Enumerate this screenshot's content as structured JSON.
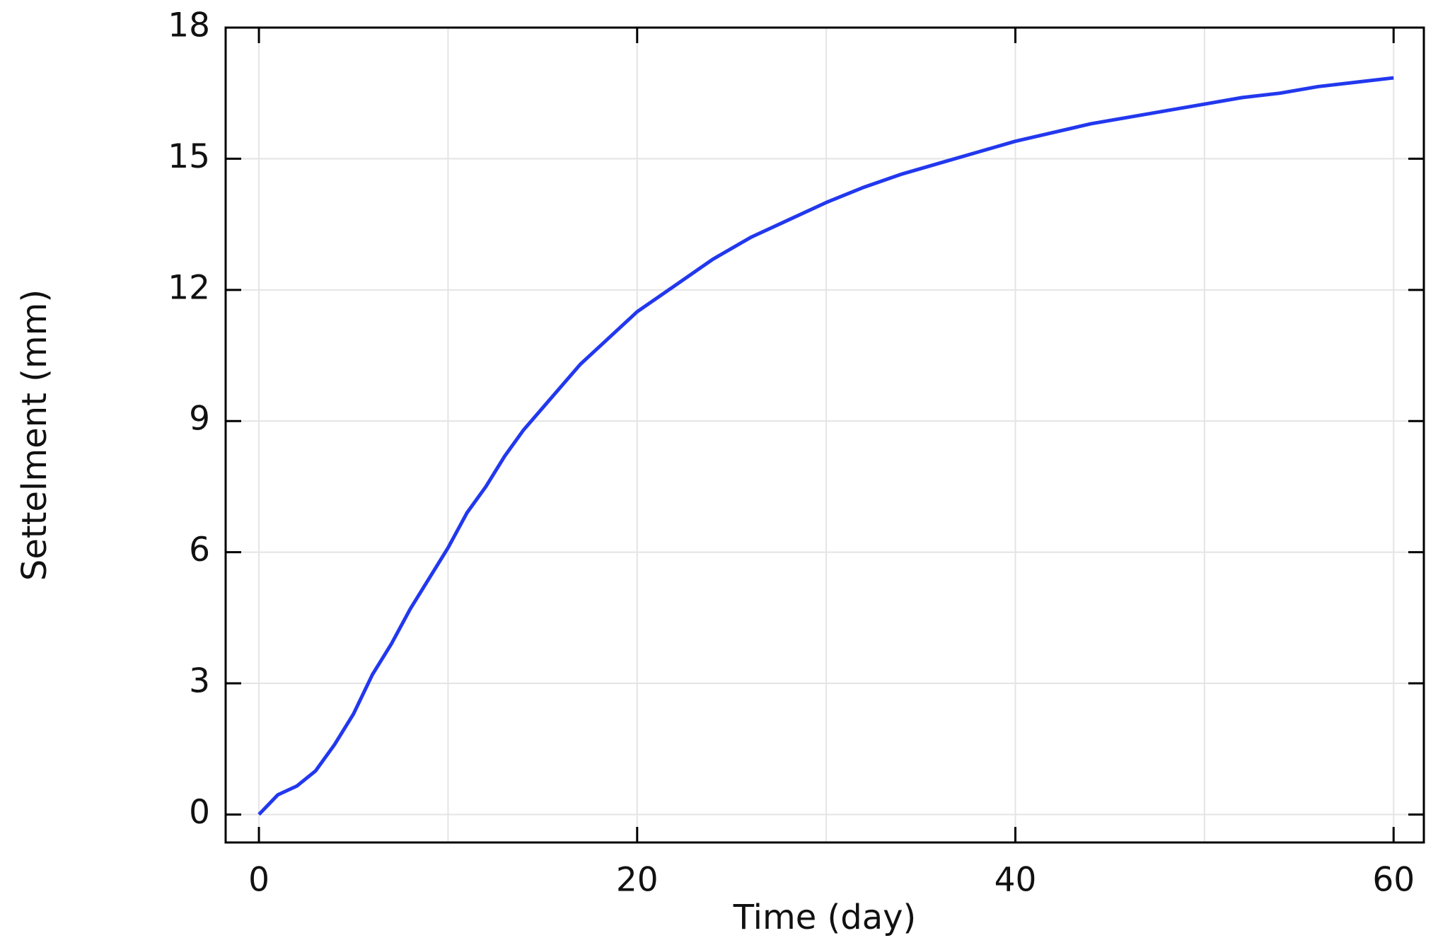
{
  "chart_data": {
    "type": "line",
    "x_label": "Time (day)",
    "y_label": "Settelment (mm)",
    "xlim": [
      -1.76,
      61.6
    ],
    "ylim": [
      -0.64,
      18
    ],
    "xticks": [
      0,
      20,
      40,
      60
    ],
    "xminorticks": [
      10,
      30,
      50
    ],
    "yticks": [
      0,
      3,
      6,
      9,
      12,
      15,
      18
    ],
    "grid": true,
    "series": [
      {
        "color": "#2238ee",
        "x": [
          0,
          1,
          2,
          3,
          4,
          5,
          6,
          7,
          8,
          9,
          10,
          11,
          12,
          13,
          14,
          15,
          16,
          17,
          18,
          19,
          20,
          22,
          24,
          26,
          28,
          30,
          32,
          34,
          36,
          38,
          40,
          42,
          44,
          46,
          48,
          50,
          52,
          54,
          56,
          58,
          60
        ],
        "values": [
          0,
          0.45,
          0.65,
          1.0,
          1.6,
          2.3,
          3.2,
          3.9,
          4.7,
          5.4,
          6.1,
          6.9,
          7.5,
          8.2,
          8.8,
          9.3,
          9.8,
          10.3,
          10.7,
          11.1,
          11.5,
          12.1,
          12.7,
          13.2,
          13.6,
          14.0,
          14.35,
          14.65,
          14.9,
          15.15,
          15.4,
          15.6,
          15.8,
          15.95,
          16.1,
          16.25,
          16.4,
          16.5,
          16.65,
          16.75,
          16.85
        ]
      }
    ]
  }
}
